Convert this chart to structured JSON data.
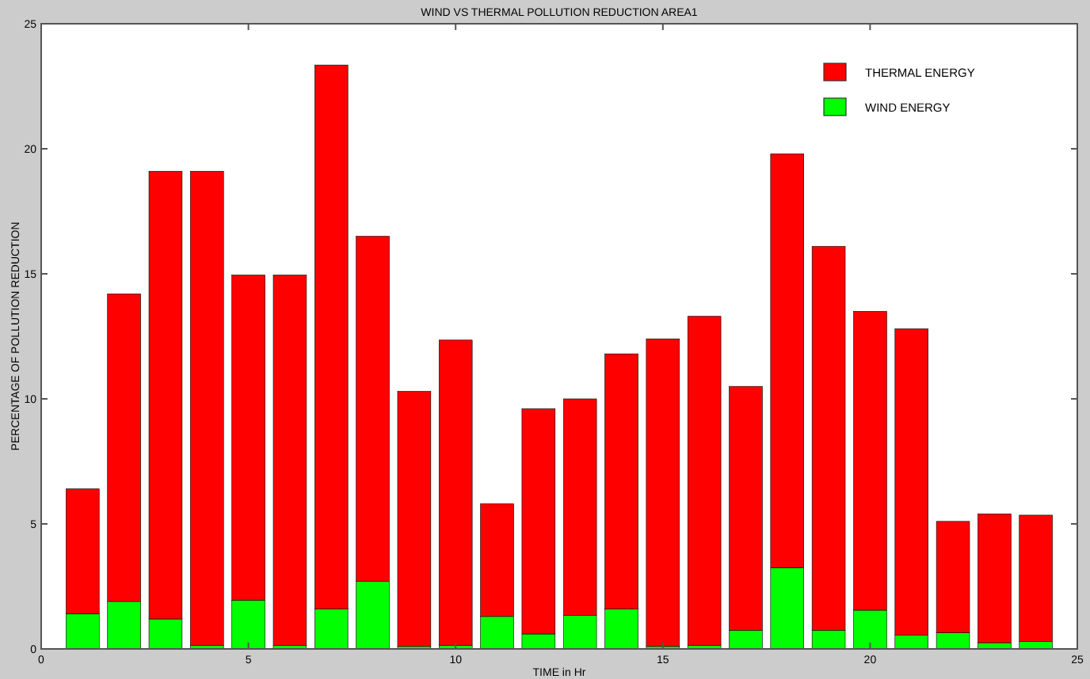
{
  "chart_data": {
    "type": "bar",
    "title": "WIND VS THERMAL POLLUTION REDUCTION AREA1",
    "xlabel": "TIME in Hr",
    "ylabel": "PERCENTAGE OF POLLUTION REDUCTION",
    "x": [
      1,
      2,
      3,
      4,
      5,
      6,
      7,
      8,
      9,
      10,
      11,
      12,
      13,
      14,
      15,
      16,
      17,
      18,
      19,
      20,
      21,
      22,
      23,
      24
    ],
    "stacked": true,
    "series": [
      {
        "name": "WIND ENERGY",
        "color": "#00ff00",
        "values": [
          1.4,
          1.9,
          1.2,
          0.15,
          1.95,
          0.15,
          1.6,
          2.7,
          0.1,
          0.15,
          1.3,
          0.6,
          1.35,
          1.6,
          0.1,
          0.15,
          0.75,
          3.25,
          0.75,
          1.55,
          0.55,
          0.65,
          0.25,
          0.3
        ]
      },
      {
        "name": "THERMAL ENERGY",
        "color": "#ff0000",
        "values": [
          5.0,
          12.3,
          17.9,
          18.95,
          13.0,
          14.8,
          21.75,
          13.8,
          10.2,
          12.2,
          4.5,
          9.0,
          8.65,
          10.2,
          12.3,
          13.15,
          9.75,
          16.55,
          15.35,
          11.95,
          12.25,
          4.45,
          5.15,
          5.05
        ]
      }
    ],
    "xlim": [
      0,
      25
    ],
    "xticks": [
      0,
      5,
      10,
      15,
      20,
      25
    ],
    "ylim": [
      0,
      25
    ],
    "yticks": [
      0,
      5,
      10,
      15,
      20,
      25
    ],
    "legend": "top right"
  }
}
